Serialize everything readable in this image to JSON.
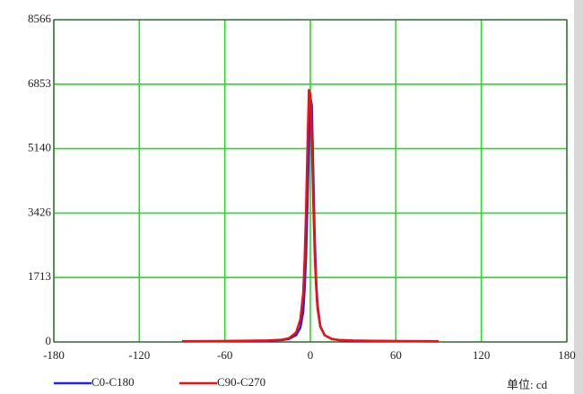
{
  "chart_data": {
    "type": "line",
    "xlim": [
      -180,
      180
    ],
    "xticks": [
      -180,
      -120,
      -60,
      0,
      60,
      120,
      180
    ],
    "ylim": [
      0,
      8566
    ],
    "yticks": [
      0,
      1713,
      3426,
      5140,
      6853,
      8566
    ],
    "grid": true,
    "grid_color": "#22dd22",
    "x": [
      -90,
      -60,
      -30,
      -20,
      -15,
      -10,
      -7,
      -5,
      -4,
      -3,
      -2,
      -1,
      0,
      1,
      2,
      3,
      4,
      5,
      7,
      10,
      15,
      20,
      30,
      60,
      90
    ],
    "series": [
      {
        "name": "C0-C180",
        "color": "#2222ee",
        "values": [
          15,
          20,
          35,
          50,
          80,
          180,
          380,
          800,
          1400,
          2300,
          3700,
          5300,
          6500,
          6300,
          4600,
          2900,
          1700,
          1000,
          420,
          180,
          80,
          50,
          35,
          20,
          15
        ]
      },
      {
        "name": "C90-C270",
        "color": "#ee1111",
        "values": [
          20,
          25,
          40,
          60,
          100,
          250,
          600,
          1300,
          2200,
          3500,
          5200,
          6700,
          6600,
          5400,
          3800,
          2400,
          1500,
          900,
          400,
          180,
          80,
          50,
          35,
          25,
          20
        ]
      }
    ],
    "unit_label": "单位: cd"
  }
}
